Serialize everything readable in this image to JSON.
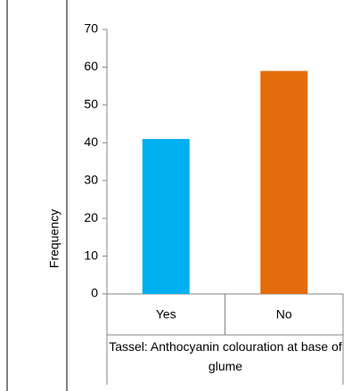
{
  "chart_data": {
    "type": "bar",
    "categories": [
      "Yes",
      "No"
    ],
    "values": [
      41,
      59
    ],
    "colors": [
      "#00b0f0",
      "#e46c0a"
    ],
    "ylabel": "Frequency",
    "xlabel": "Tassel: Anthocyanin colouration at base of glume",
    "ylim": [
      0,
      70
    ],
    "yticks": [
      0,
      10,
      20,
      30,
      40,
      50,
      60,
      70
    ],
    "grid": false
  }
}
